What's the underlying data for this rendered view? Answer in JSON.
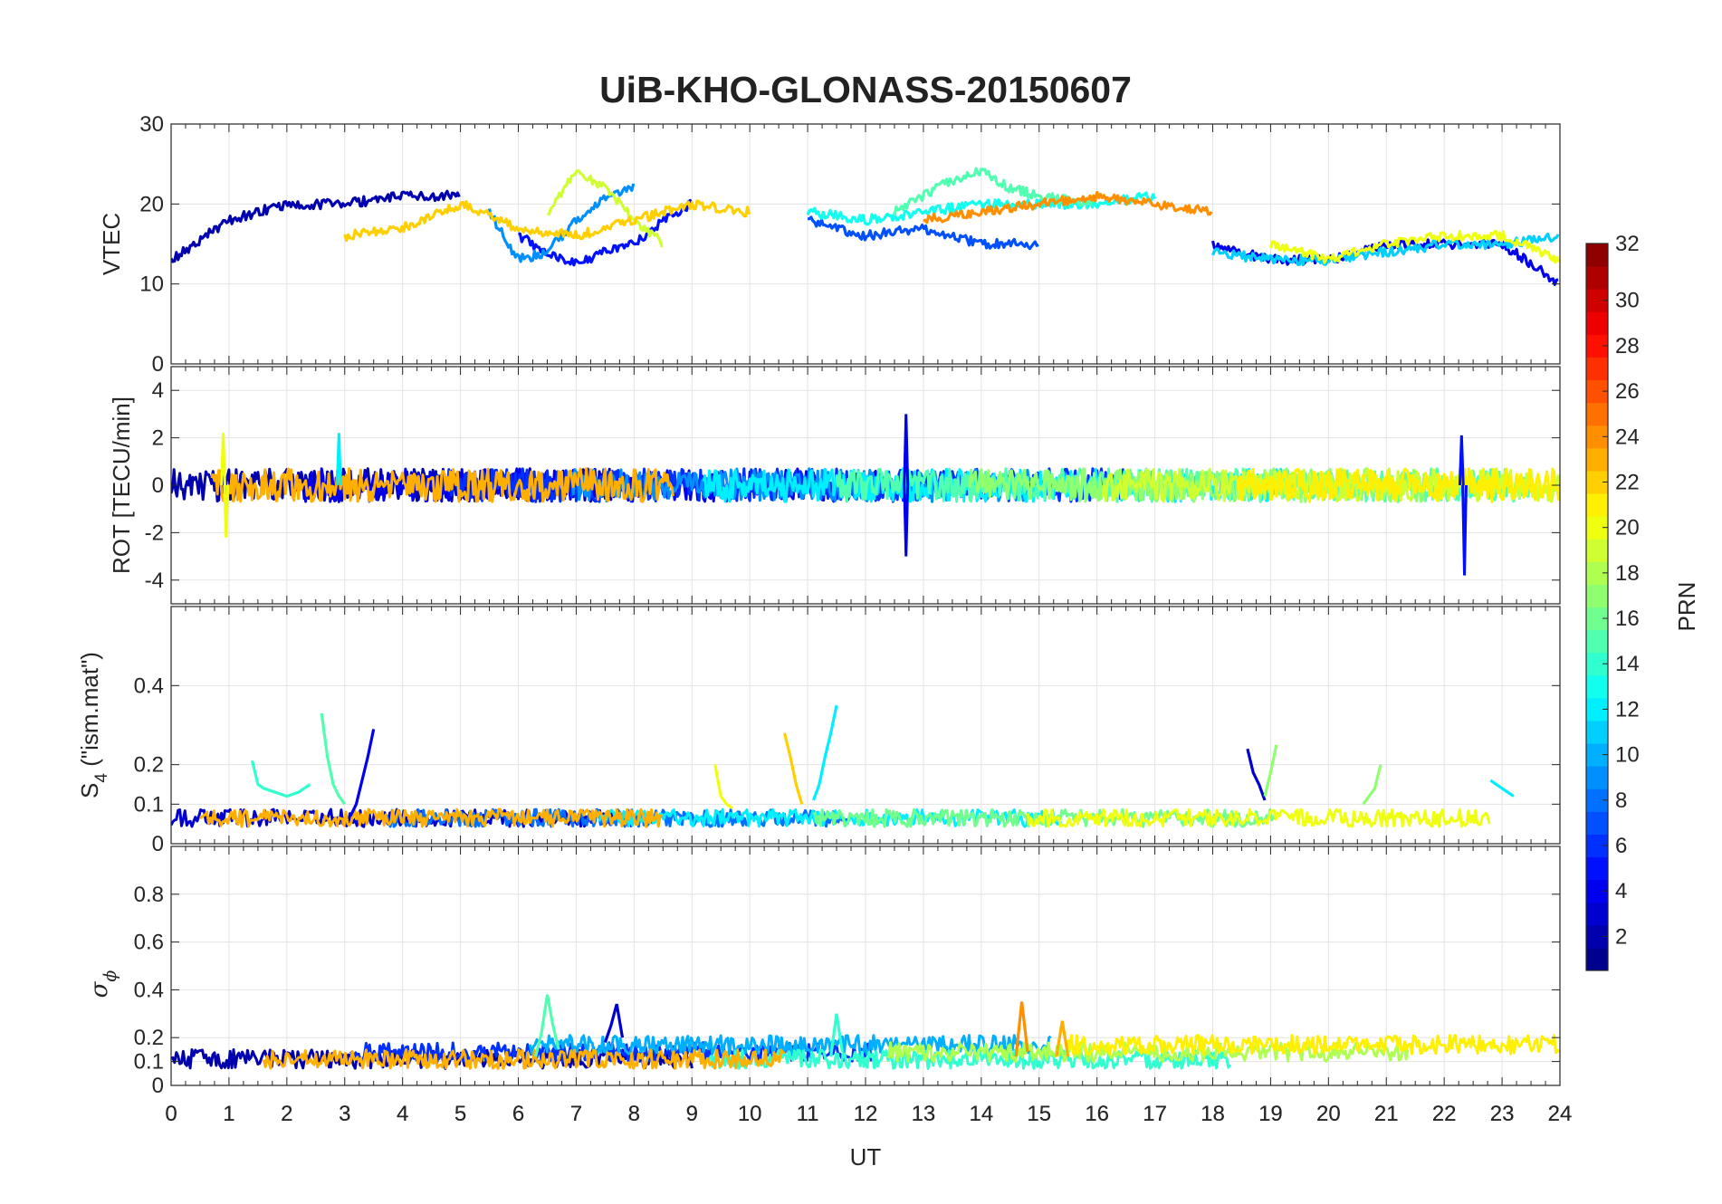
{
  "figure": {
    "title": "UiB-KHO-GLONASS-20150607",
    "xlabel": "UT",
    "colorbar": {
      "label": "PRN",
      "colormap": "jet",
      "range": [
        1,
        32
      ],
      "ticks": [
        "2",
        "4",
        "6",
        "8",
        "10",
        "12",
        "14",
        "16",
        "18",
        "20",
        "22",
        "24",
        "26",
        "28",
        "30",
        "32"
      ]
    }
  },
  "chart_data": [
    {
      "type": "line",
      "panel": "vtec",
      "ylabel": "VTEC",
      "xlim": [
        0,
        24
      ],
      "ylim": [
        0,
        30
      ],
      "xticks": [
        "0",
        "1",
        "2",
        "3",
        "4",
        "5",
        "6",
        "7",
        "8",
        "9",
        "10",
        "11",
        "12",
        "13",
        "14",
        "15",
        "16",
        "17",
        "18",
        "19",
        "20",
        "21",
        "22",
        "23",
        "24"
      ],
      "yticks": [
        "0",
        "10",
        "20",
        "30"
      ],
      "grid": true,
      "series": [
        {
          "prn": 2,
          "x": [
            0,
            1,
            2,
            3,
            4,
            5
          ],
          "y": [
            13,
            18,
            20,
            20,
            21,
            21
          ]
        },
        {
          "prn": 5,
          "x": [
            6,
            6.5,
            7,
            7.5,
            8,
            8.5,
            9
          ],
          "y": [
            16,
            14,
            12.5,
            14,
            15,
            18,
            20
          ]
        },
        {
          "prn": 7,
          "x": [
            11,
            12,
            13,
            14,
            15
          ],
          "y": [
            18,
            16,
            17,
            15,
            15
          ]
        },
        {
          "prn": 9,
          "x": [
            5.5,
            6,
            6.5,
            7,
            7.5,
            8
          ],
          "y": [
            19,
            13,
            14,
            18,
            21,
            22
          ]
        },
        {
          "prn": 13,
          "x": [
            11,
            12,
            13,
            14,
            15,
            16,
            17
          ],
          "y": [
            19,
            18,
            19,
            20,
            20,
            20,
            21
          ]
        },
        {
          "prn": 15,
          "x": [
            12.5,
            13,
            13.5,
            14,
            14.5,
            15,
            16
          ],
          "y": [
            19,
            21,
            23,
            24,
            22,
            21,
            20
          ]
        },
        {
          "prn": 19,
          "x": [
            6.5,
            7,
            7.5,
            8,
            8.5
          ],
          "y": [
            19,
            24,
            22,
            18,
            15
          ]
        },
        {
          "prn": 22,
          "x": [
            3,
            4,
            5,
            6,
            7,
            8,
            9,
            10
          ],
          "y": [
            16,
            17,
            20,
            17,
            16,
            18,
            20,
            19
          ]
        },
        {
          "prn": 24,
          "x": [
            13,
            14,
            15,
            16,
            17,
            18
          ],
          "y": [
            18,
            19,
            20,
            21,
            20,
            19
          ]
        },
        {
          "prn": 4,
          "x": [
            18,
            19,
            20,
            21,
            22,
            23,
            24
          ],
          "y": [
            15,
            13,
            13,
            15,
            15,
            15,
            10
          ]
        },
        {
          "prn": 11,
          "x": [
            18,
            19,
            20,
            21,
            22,
            23,
            24
          ],
          "y": [
            14,
            13,
            13,
            14,
            15,
            15,
            16
          ]
        },
        {
          "prn": 20,
          "x": [
            19,
            20,
            21,
            22,
            23,
            24
          ],
          "y": [
            15,
            13,
            15,
            16,
            16,
            13
          ]
        }
      ]
    },
    {
      "type": "line",
      "panel": "rot",
      "ylabel": "ROT [TECU/min]",
      "xlim": [
        0,
        24
      ],
      "ylim": [
        -5,
        5
      ],
      "yticks": [
        "-4",
        "-2",
        "0",
        "2",
        "4"
      ],
      "grid": true,
      "spikes": [
        {
          "prn": 20,
          "x": 0.9,
          "y": 2.2
        },
        {
          "prn": 20,
          "x": 0.95,
          "y": -2.2
        },
        {
          "prn": 12,
          "x": 2.9,
          "y": 2.2
        },
        {
          "prn": 4,
          "x": 12.7,
          "y": 3.0
        },
        {
          "prn": 4,
          "x": 12.7,
          "y": -3.0
        },
        {
          "prn": 5,
          "x": 22.3,
          "y": 2.1
        },
        {
          "prn": 5,
          "x": 22.35,
          "y": -3.8
        }
      ]
    },
    {
      "type": "line",
      "panel": "s4",
      "ylabel_main": "S",
      "ylabel_sub": "4",
      "ylabel_tail": " (\"ism.mat\")",
      "xlim": [
        0,
        24
      ],
      "ylim": [
        0,
        0.6
      ],
      "yticks": [
        "0",
        "0.1",
        "0.2",
        "0.4"
      ],
      "grid": true,
      "series": [
        {
          "prn": 14,
          "x": [
            1.4,
            1.5,
            1.6,
            1.8,
            2.0,
            2.2,
            2.4
          ],
          "y": [
            0.21,
            0.15,
            0.14,
            0.13,
            0.12,
            0.13,
            0.15
          ]
        },
        {
          "prn": 15,
          "x": [
            2.6,
            2.7,
            2.8,
            2.9,
            3.0
          ],
          "y": [
            0.33,
            0.22,
            0.15,
            0.12,
            0.1
          ]
        },
        {
          "prn": 4,
          "x": [
            3.1,
            3.2,
            3.3,
            3.4,
            3.5
          ],
          "y": [
            0.07,
            0.1,
            0.16,
            0.22,
            0.29
          ]
        },
        {
          "prn": 20,
          "x": [
            9.4,
            9.5,
            9.6,
            9.7
          ],
          "y": [
            0.2,
            0.12,
            0.1,
            0.09
          ]
        },
        {
          "prn": 22,
          "x": [
            10.6,
            10.7,
            10.8,
            10.9
          ],
          "y": [
            0.28,
            0.22,
            0.15,
            0.1
          ]
        },
        {
          "prn": 12,
          "x": [
            11.1,
            11.2,
            11.3,
            11.4,
            11.5
          ],
          "y": [
            0.11,
            0.15,
            0.22,
            0.28,
            0.35
          ]
        },
        {
          "prn": 3,
          "x": [
            18.6,
            18.7,
            18.8,
            18.9
          ],
          "y": [
            0.24,
            0.18,
            0.15,
            0.11
          ]
        },
        {
          "prn": 17,
          "x": [
            18.9,
            19.0,
            19.1
          ],
          "y": [
            0.12,
            0.18,
            0.25
          ]
        },
        {
          "prn": 17,
          "x": [
            20.6,
            20.8,
            20.9
          ],
          "y": [
            0.1,
            0.14,
            0.2
          ]
        },
        {
          "prn": 12,
          "x": [
            22.8,
            23.0,
            23.2
          ],
          "y": [
            0.16,
            0.14,
            0.12
          ]
        }
      ]
    },
    {
      "type": "line",
      "panel": "sigma_phi",
      "ylabel_main": "σ",
      "ylabel_sub": "ϕ",
      "xlim": [
        0,
        24
      ],
      "ylim": [
        0,
        1
      ],
      "yticks": [
        "0",
        "0.1",
        "0.2",
        "0.4",
        "0.6",
        "0.8"
      ],
      "grid": true,
      "series": [
        {
          "prn": 15,
          "x": [
            6.3,
            6.4,
            6.5,
            6.6,
            6.7
          ],
          "y": [
            0.12,
            0.22,
            0.38,
            0.25,
            0.15
          ]
        },
        {
          "prn": 3,
          "x": [
            7.5,
            7.6,
            7.7,
            7.8
          ],
          "y": [
            0.18,
            0.25,
            0.34,
            0.2
          ]
        },
        {
          "prn": 14,
          "x": [
            11.4,
            11.5,
            11.6
          ],
          "y": [
            0.12,
            0.3,
            0.14
          ]
        },
        {
          "prn": 24,
          "x": [
            14.6,
            14.7,
            14.8
          ],
          "y": [
            0.12,
            0.35,
            0.14
          ]
        },
        {
          "prn": 23,
          "x": [
            15.3,
            15.4,
            15.5
          ],
          "y": [
            0.12,
            0.27,
            0.12
          ]
        }
      ]
    }
  ]
}
